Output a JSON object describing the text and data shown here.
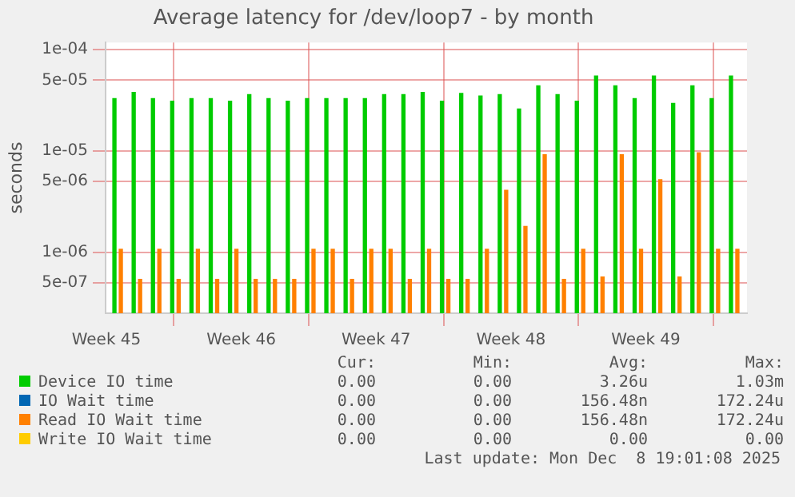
{
  "chart_data": {
    "type": "bar",
    "title": "Average latency for /dev/loop7 - by month",
    "ylabel": "seconds",
    "x": [
      "2025-11-06T05:00",
      "2025-11-07T05:00",
      "2025-11-08T05:00",
      "2025-11-09T05:00",
      "2025-11-10T05:00",
      "2025-11-11T05:00",
      "2025-11-12T05:00",
      "2025-11-13T05:00",
      "2025-11-14T05:00",
      "2025-11-15T05:00",
      "2025-11-16T05:00",
      "2025-11-17T05:00",
      "2025-11-18T05:00",
      "2025-11-19T05:00",
      "2025-11-20T05:00",
      "2025-11-21T05:00",
      "2025-11-22T05:00",
      "2025-11-23T05:00",
      "2025-11-24T05:00",
      "2025-11-25T05:00",
      "2025-11-26T05:00",
      "2025-11-27T05:00",
      "2025-11-28T05:00",
      "2025-11-29T05:00",
      "2025-11-30T05:00",
      "2025-12-01T05:00",
      "2025-12-02T05:00",
      "2025-12-03T05:00",
      "2025-12-04T05:00",
      "2025-12-05T05:00",
      "2025-12-06T05:00",
      "2025-12-07T05:00",
      "2025-12-08T05:00"
    ],
    "series": [
      {
        "name": "Device IO time",
        "color": "#00cc00",
        "values": [
          3.3e-05,
          3.8e-05,
          3.3e-05,
          3.1e-05,
          3.3e-05,
          3.3e-05,
          3.1e-05,
          3.6e-05,
          3.3e-05,
          3.1e-05,
          3.3e-05,
          3.3e-05,
          3.3e-05,
          3.3e-05,
          3.6e-05,
          3.6e-05,
          3.8e-05,
          3.1e-05,
          3.7e-05,
          3.5e-05,
          3.6e-05,
          2.6e-05,
          4.4e-05,
          3.6e-05,
          3.1e-05,
          5.5e-05,
          4.4e-05,
          3.3e-05,
          5.5e-05,
          2.95e-05,
          4.4e-05,
          3.3e-05,
          5.5e-05
        ]
      },
      {
        "name": "IO Wait time",
        "color": "#0066b3",
        "values": [
          null,
          null,
          null,
          null,
          null,
          null,
          null,
          null,
          null,
          null,
          null,
          null,
          null,
          null,
          null,
          null,
          null,
          null,
          null,
          null,
          null,
          null,
          null,
          null,
          null,
          null,
          null,
          null,
          null,
          null,
          null,
          null,
          null
        ]
      },
      {
        "name": "Read IO Wait time",
        "color": "#ff8000",
        "values": [
          1.07e-06,
          5.4e-07,
          1.07e-06,
          5.4e-07,
          1.07e-06,
          5.4e-07,
          1.07e-06,
          5.4e-07,
          5.4e-07,
          5.4e-07,
          1.07e-06,
          1.07e-06,
          5.4e-07,
          1.07e-06,
          1.07e-06,
          5.4e-07,
          1.07e-06,
          5.4e-07,
          5.4e-07,
          1.07e-06,
          4.1e-06,
          1.8e-06,
          9.2e-06,
          5.4e-07,
          1.07e-06,
          5.7e-07,
          9.2e-06,
          1.07e-06,
          5.2e-06,
          5.7e-07,
          9.6e-06,
          1.07e-06,
          1.07e-06
        ]
      },
      {
        "name": "Write IO Wait time",
        "color": "#ffcc00",
        "values": [
          null,
          null,
          null,
          null,
          null,
          null,
          null,
          null,
          null,
          null,
          null,
          null,
          null,
          null,
          null,
          null,
          null,
          null,
          null,
          null,
          null,
          null,
          null,
          null,
          null,
          null,
          null,
          null,
          null,
          null,
          null,
          null,
          null
        ]
      }
    ],
    "xlim": [
      "2025-11-05T12:00",
      "2025-12-08T19:00"
    ],
    "xticks": [
      {
        "value": "2025-11-05T13:00",
        "label": "Week 45"
      },
      {
        "value": "2025-11-12T13:00",
        "label": "Week 46"
      },
      {
        "value": "2025-11-19T13:00",
        "label": "Week 47"
      },
      {
        "value": "2025-11-26T13:00",
        "label": "Week 48"
      },
      {
        "value": "2025-12-03T13:00",
        "label": "Week 49"
      }
    ],
    "ylim": [
      2.5e-07,
      0.000118
    ],
    "yticks": [
      {
        "value": 5e-07,
        "label": "5e-07"
      },
      {
        "value": 1e-06,
        "label": "1e-06"
      },
      {
        "value": 5e-06,
        "label": "5e-06"
      },
      {
        "value": 1e-05,
        "label": "1e-05"
      },
      {
        "value": 5e-05,
        "label": "5e-05"
      },
      {
        "value": 0.0001,
        "label": "1e-04"
      }
    ],
    "log": "y",
    "grid": true,
    "legend": "bottom",
    "annotations": [
      "Cur:",
      "Min:",
      "Avg:",
      "Max:",
      "0.00",
      "0.00",
      "3.26u",
      "1.03m",
      "0.00",
      "0.00",
      "156.48n",
      "172.24u",
      "0.00",
      "0.00",
      "156.48n",
      "172.24u",
      "0.00",
      "0.00",
      "0.00",
      "0.00",
      "Last update: Mon Dec  8 19:01:08 2025"
    ]
  }
}
